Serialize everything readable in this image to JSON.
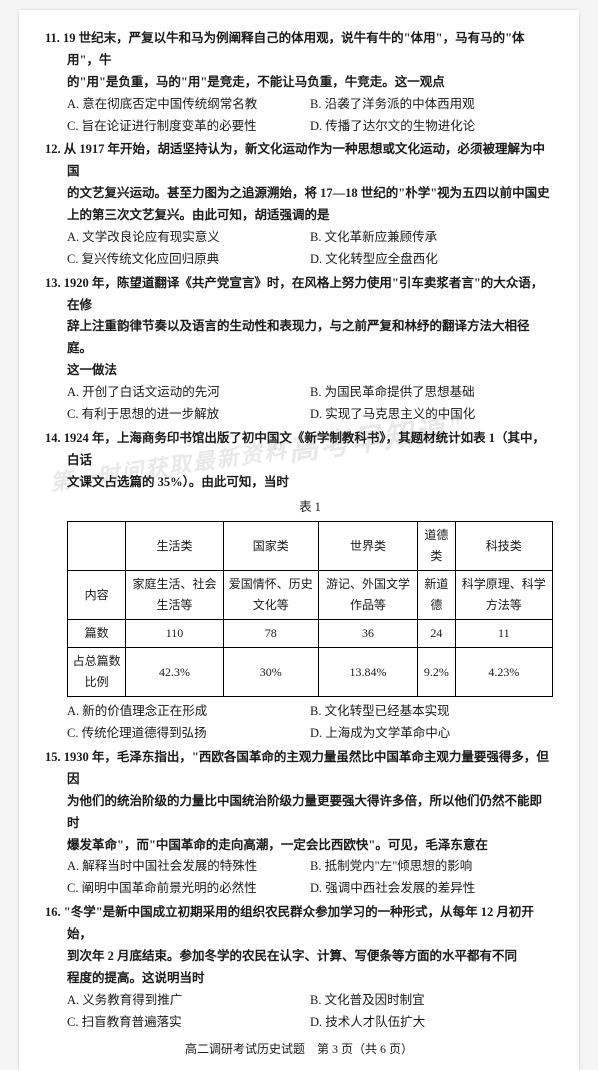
{
  "watermarks": {
    "wm1": "\"高考早知道\"",
    "wm2": "第一时间获取最新资料"
  },
  "q11": {
    "stem_l1": "11. 19 世纪末，严复以牛和马为例阐释自己的体用观，说牛有牛的\"体用\"，马有马的\"体用\"，牛",
    "stem_l2": "的\"用\"是负重，马的\"用\"是竞走，不能让马负重，牛竞走。这一观点",
    "optA": "A. 意在彻底否定中国传统纲常名教",
    "optB": "B. 沿袭了洋务派的中体西用观",
    "optC": "C. 旨在论证进行制度变革的必要性",
    "optD": "D. 传播了达尔文的生物进化论"
  },
  "q12": {
    "stem_l1": "12. 从 1917 年开始，胡适坚持认为，新文化运动作为一种思想或文化运动，必须被理解为中国",
    "stem_l2": "的文艺复兴运动。甚至力图为之追源溯始，将 17—18 世纪的\"朴学\"视为五四以前中国史",
    "stem_l3": "上的第三次文艺复兴。由此可知，胡适强调的是",
    "optA": "A. 文学改良论应有现实意义",
    "optB": "B. 文化革新应兼顾传承",
    "optC": "C. 复兴传统文化应回归原典",
    "optD": "D. 文化转型应全盘西化"
  },
  "q13": {
    "stem_l1": "13. 1920 年，陈望道翻译《共产党宣言》时，在风格上努力使用\"引车卖浆者言\"的大众语，在修",
    "stem_l2": "辞上注重韵律节奏以及语言的生动性和表现力，与之前严复和林纾的翻译方法大相径庭。",
    "stem_l3": "这一做法",
    "optA": "A. 开创了白话文运动的先河",
    "optB": "B. 为国民革命提供了思想基础",
    "optC": "C. 有利于思想的进一步解放",
    "optD": "D. 实现了马克思主义的中国化"
  },
  "q14": {
    "stem_l1": "14. 1924 年，上海商务印书馆出版了初中国文《新学制教科书》，其题材统计如表 1（其中，白话",
    "stem_l2": "文课文占选篇的 35%）。由此可知，当时",
    "table_title": "表 1",
    "table": {
      "headers": [
        "",
        "生活类",
        "国家类",
        "世界类",
        "道德类",
        "科技类"
      ],
      "row1": [
        "内容",
        "家庭生活、社会生活等",
        "爱国情怀、历史文化等",
        "游记、外国文学作品等",
        "新道德",
        "科学原理、科学方法等"
      ],
      "row2": [
        "篇数",
        "110",
        "78",
        "36",
        "24",
        "11"
      ],
      "row3": [
        "占总篇数比例",
        "42.3%",
        "30%",
        "13.84%",
        "9.2%",
        "4.23%"
      ]
    },
    "optA": "A. 新的价值理念正在形成",
    "optB": "B. 文化转型已经基本实现",
    "optC": "C. 传统伦理道德得到弘扬",
    "optD": "D. 上海成为文学革命中心"
  },
  "q15": {
    "stem_l1": "15. 1930 年，毛泽东指出，\"西欧各国革命的主观力量虽然比中国革命主观力量要强得多，但因",
    "stem_l2": "为他们的统治阶级的力量比中国统治阶级力量更要强大得许多倍，所以他们仍然不能即时",
    "stem_l3": "爆发革命\"，而\"中国革命的走向高潮，一定会比西欧快\"。可见，毛泽东意在",
    "optA": "A. 解释当时中国社会发展的特殊性",
    "optB": "B. 抵制党内\"左\"倾思想的影响",
    "optC": "C. 阐明中国革命前景光明的必然性",
    "optD": "D. 强调中西社会发展的差异性"
  },
  "q16": {
    "stem_l1": "16. \"冬学\"是新中国成立初期采用的组织农民群众参加学习的一种形式，从每年 12 月初开始，",
    "stem_l2": "到次年 2 月底结束。参加冬学的农民在认字、计算、写便条等方面的水平都有不同",
    "stem_l3": "程度的提高。这说明当时",
    "optA": "A. 义务教育得到推广",
    "optB": "B. 文化普及因时制宜",
    "optC": "C. 扫盲教育普遍落实",
    "optD": "D. 技术人才队伍扩大"
  },
  "footer": "高二调研考试历史试题　第 3 页（共 6 页）"
}
